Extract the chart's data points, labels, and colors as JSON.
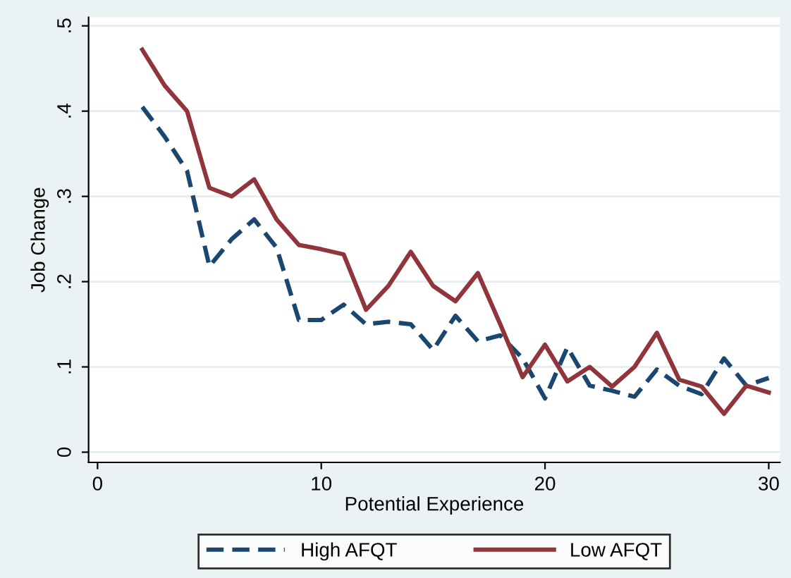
{
  "chart_data": {
    "type": "line",
    "xlabel": "Potential Experience",
    "ylabel": "Job Change",
    "x": [
      2,
      3,
      4,
      5,
      6,
      7,
      8,
      9,
      10,
      11,
      12,
      13,
      14,
      15,
      16,
      17,
      18,
      19,
      20,
      21,
      22,
      23,
      24,
      25,
      26,
      27,
      28,
      29,
      30
    ],
    "series": [
      {
        "name": "High AFQT",
        "color": "#1a476f",
        "line_style": "dashed",
        "values": [
          0.405,
          0.37,
          0.33,
          0.218,
          0.25,
          0.273,
          0.24,
          0.155,
          0.155,
          0.173,
          0.15,
          0.153,
          0.15,
          0.12,
          0.16,
          0.13,
          0.137,
          0.11,
          0.063,
          0.123,
          0.078,
          0.072,
          0.065,
          0.097,
          0.078,
          0.068,
          0.11,
          0.078,
          0.087
        ]
      },
      {
        "name": "Low AFQT",
        "color": "#90353b",
        "line_style": "solid",
        "values": [
          0.472,
          0.43,
          0.4,
          0.31,
          0.3,
          0.32,
          0.273,
          0.243,
          0.238,
          0.232,
          0.167,
          0.195,
          0.235,
          0.195,
          0.177,
          0.21,
          0.15,
          0.088,
          0.126,
          0.083,
          0.1,
          0.077,
          0.1,
          0.14,
          0.085,
          0.077,
          0.045,
          0.078,
          0.07
        ]
      }
    ],
    "xlim": [
      -0.4,
      30.5
    ],
    "xticks": [
      0,
      10,
      20,
      30
    ],
    "ylim": [
      -0.012,
      0.51
    ],
    "yticks": [
      0,
      {
        "value": 0.1,
        "label": ".1"
      },
      {
        "value": 0.2,
        "label": ".2"
      },
      {
        "value": 0.3,
        "label": ".3"
      },
      {
        "value": 0.4,
        "label": ".4"
      },
      {
        "value": 0.5,
        "label": ".5"
      }
    ],
    "grid": "y",
    "legend": "bottom"
  }
}
